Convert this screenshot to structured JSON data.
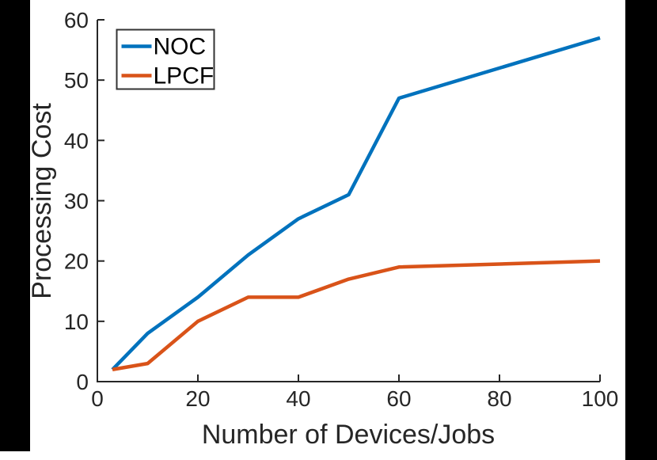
{
  "chart_data": {
    "type": "line",
    "title": "",
    "xlabel": "Number of Devices/Jobs",
    "ylabel": "Processing Cost",
    "xlim": [
      0,
      100
    ],
    "ylim": [
      0,
      60
    ],
    "xticks": [
      0,
      20,
      40,
      60,
      80,
      100
    ],
    "yticks": [
      0,
      10,
      20,
      30,
      40,
      50,
      60
    ],
    "grid": false,
    "legend_position": "top-left",
    "axis_color": "#262626",
    "series": [
      {
        "name": "NOC",
        "color": "#0072BD",
        "x": [
          3,
          10,
          20,
          30,
          40,
          50,
          60,
          100
        ],
        "y": [
          2,
          8,
          14,
          21,
          27,
          31,
          47,
          57
        ]
      },
      {
        "name": "LPCF",
        "color": "#D95319",
        "x": [
          3,
          10,
          20,
          30,
          40,
          50,
          60,
          100
        ],
        "y": [
          2,
          3,
          10,
          14,
          14,
          17,
          19,
          20
        ]
      }
    ]
  },
  "legend": {
    "entries": [
      {
        "label": "NOC"
      },
      {
        "label": "LPCF"
      }
    ]
  }
}
